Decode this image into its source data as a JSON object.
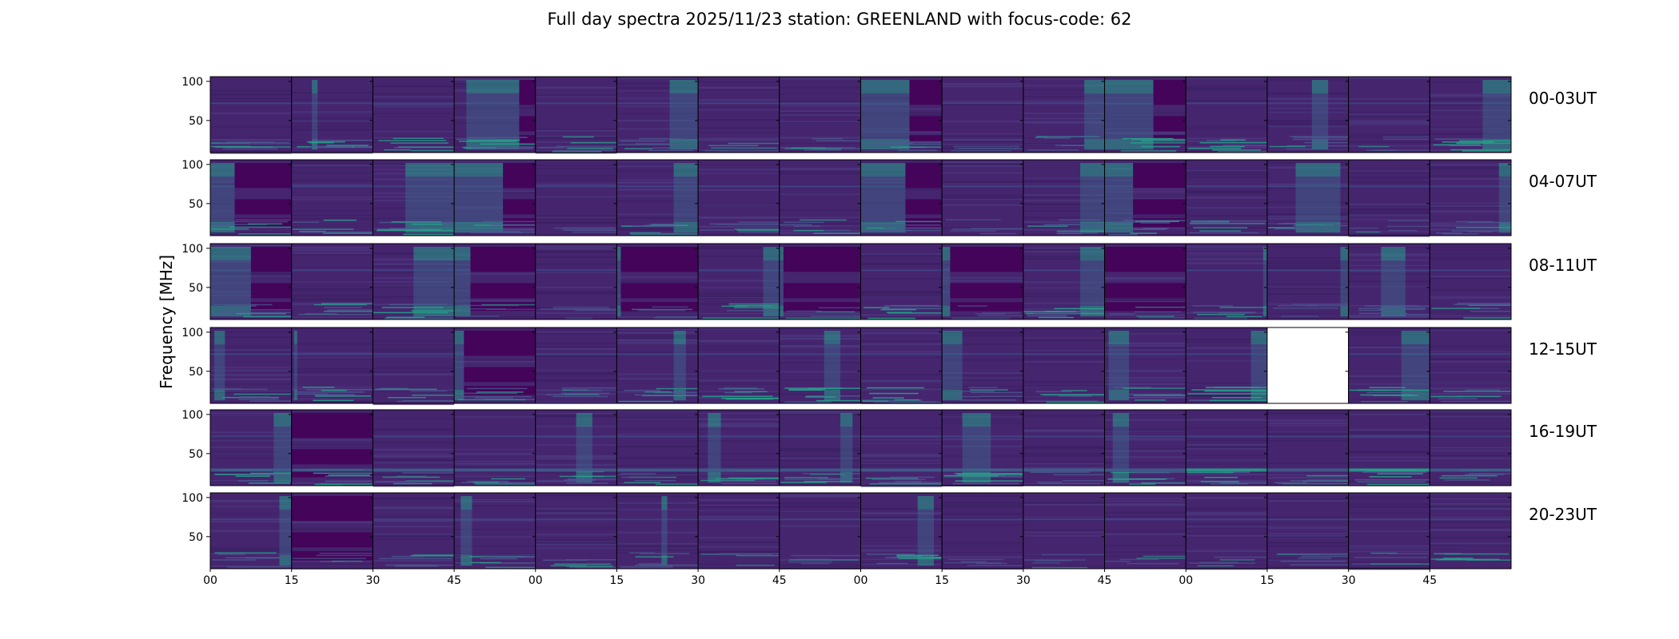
{
  "title": "Full day spectra 2025/11/23 station: GREENLAND with focus-code: 62",
  "chart_data": {
    "type": "heatmap",
    "title": "Full day spectra 2025/11/23 station: GREENLAND with focus-code: 62",
    "xlabel": "",
    "ylabel": "Frequency [MHz]",
    "ylim": [
      9,
      106
    ],
    "yticks": [
      100,
      50
    ],
    "ytick_labels": [
      "100",
      "50"
    ],
    "xtick_labels": [
      "00",
      "15",
      "30",
      "45",
      "00",
      "15",
      "30",
      "45",
      "00",
      "15",
      "30",
      "45",
      "00",
      "15",
      "30",
      "45"
    ],
    "colormap": "viridis",
    "colors": {
      "background": "#46256f",
      "dark_block": "#44045a",
      "band": "#3e4a89",
      "bright": "#26a08a",
      "peak": "#b5de2b",
      "missing": "#ffffff"
    },
    "rows": [
      {
        "label": "00-03UT",
        "panels": [
          {
            "burst": null,
            "dark": null,
            "low": "medium"
          },
          {
            "burst": [
              0.25,
              0.32
            ],
            "dark": null,
            "low": "high"
          },
          {
            "burst": null,
            "dark": null,
            "low": "medium"
          },
          {
            "burst": [
              0.15,
              0.8
            ],
            "dark": [
              0.8,
              1.0
            ],
            "low": "high"
          },
          {
            "burst": null,
            "dark": null,
            "low": "medium"
          },
          {
            "burst": [
              0.65,
              1.0
            ],
            "dark": null,
            "low": "medium"
          },
          {
            "burst": null,
            "dark": null,
            "low": "low"
          },
          {
            "burst": null,
            "dark": null,
            "low": "medium"
          },
          {
            "burst": [
              0.0,
              0.6
            ],
            "dark": [
              0.6,
              1.0
            ],
            "low": "medium"
          },
          {
            "burst": null,
            "dark": null,
            "low": "low"
          },
          {
            "burst": [
              0.75,
              1.0
            ],
            "dark": null,
            "low": "medium"
          },
          {
            "burst": [
              0.0,
              0.6
            ],
            "dark": [
              0.6,
              1.0
            ],
            "low": "high"
          },
          {
            "burst": null,
            "dark": null,
            "low": "high"
          },
          {
            "burst": [
              0.55,
              0.75
            ],
            "dark": null,
            "low": "medium"
          },
          {
            "burst": null,
            "dark": null,
            "low": "low"
          },
          {
            "burst": [
              0.65,
              1.0
            ],
            "dark": null,
            "low": "high"
          }
        ]
      },
      {
        "label": "04-07UT",
        "panels": [
          {
            "burst": [
              0.0,
              0.3
            ],
            "dark": [
              0.3,
              1.0
            ],
            "low": "medium"
          },
          {
            "burst": null,
            "dark": null,
            "low": "medium"
          },
          {
            "burst": [
              0.4,
              1.0
            ],
            "dark": null,
            "low": "high"
          },
          {
            "burst": [
              0.0,
              0.6
            ],
            "dark": [
              0.6,
              1.0
            ],
            "low": "medium"
          },
          {
            "burst": null,
            "dark": null,
            "low": "low"
          },
          {
            "burst": [
              0.7,
              1.0
            ],
            "dark": null,
            "low": "high"
          },
          {
            "burst": null,
            "dark": null,
            "low": "medium"
          },
          {
            "burst": null,
            "dark": null,
            "low": "medium"
          },
          {
            "burst": [
              0.0,
              0.55
            ],
            "dark": [
              0.55,
              1.0
            ],
            "low": "medium"
          },
          {
            "burst": null,
            "dark": null,
            "low": "low"
          },
          {
            "burst": [
              0.7,
              1.0
            ],
            "dark": null,
            "low": "medium"
          },
          {
            "burst": [
              0.0,
              0.35
            ],
            "dark": [
              0.35,
              1.0
            ],
            "low": "high"
          },
          {
            "burst": null,
            "dark": null,
            "low": "medium"
          },
          {
            "burst": [
              0.35,
              0.9
            ],
            "dark": null,
            "low": "high"
          },
          {
            "burst": null,
            "dark": null,
            "low": "low"
          },
          {
            "burst": [
              0.85,
              1.0
            ],
            "dark": null,
            "low": "medium"
          }
        ]
      },
      {
        "label": "08-11UT",
        "panels": [
          {
            "burst": [
              0.0,
              0.5
            ],
            "dark": [
              0.5,
              1.0
            ],
            "low": "medium"
          },
          {
            "burst": null,
            "dark": null,
            "low": "medium"
          },
          {
            "burst": [
              0.5,
              1.0
            ],
            "dark": null,
            "low": "high"
          },
          {
            "burst": [
              0.0,
              0.2
            ],
            "dark": [
              0.2,
              1.0
            ],
            "low": "low"
          },
          {
            "burst": null,
            "dark": null,
            "low": "low"
          },
          {
            "burst": [
              0.0,
              0.05
            ],
            "dark": [
              0.05,
              1.0
            ],
            "low": "low"
          },
          {
            "burst": [
              0.8,
              1.0
            ],
            "dark": null,
            "low": "medium"
          },
          {
            "burst": [
              0.0,
              0.05
            ],
            "dark": [
              0.05,
              1.0
            ],
            "low": "low"
          },
          {
            "burst": null,
            "dark": null,
            "low": "high"
          },
          {
            "burst": [
              0.0,
              0.1
            ],
            "dark": [
              0.1,
              1.0
            ],
            "low": "low"
          },
          {
            "burst": [
              0.7,
              1.0
            ],
            "dark": null,
            "low": "high"
          },
          {
            "burst": null,
            "dark": [
              0.0,
              1.0
            ],
            "low": "low"
          },
          {
            "burst": [
              0.95,
              1.0
            ],
            "dark": null,
            "low": "medium"
          },
          {
            "burst": [
              0.9,
              1.0
            ],
            "dark": null,
            "low": "low"
          },
          {
            "burst": [
              0.4,
              0.7
            ],
            "dark": null,
            "low": "medium"
          },
          {
            "burst": null,
            "dark": null,
            "low": "medium"
          }
        ]
      },
      {
        "label": "12-15UT",
        "panels": [
          {
            "burst": [
              0.05,
              0.18
            ],
            "dark": null,
            "low": "medium"
          },
          {
            "burst": [
              0.03,
              0.07
            ],
            "dark": null,
            "low": "high"
          },
          {
            "burst": null,
            "dark": null,
            "low": "medium"
          },
          {
            "burst": [
              0.0,
              0.12
            ],
            "dark": [
              0.12,
              1.0
            ],
            "low": "medium"
          },
          {
            "burst": null,
            "dark": null,
            "low": "medium"
          },
          {
            "burst": [
              0.7,
              0.85
            ],
            "dark": null,
            "low": "medium"
          },
          {
            "burst": null,
            "dark": null,
            "low": "high"
          },
          {
            "burst": [
              0.55,
              0.75
            ],
            "dark": null,
            "low": "high"
          },
          {
            "burst": null,
            "dark": null,
            "low": "high"
          },
          {
            "burst": [
              0.0,
              0.25
            ],
            "dark": null,
            "low": "medium"
          },
          {
            "burst": null,
            "dark": null,
            "low": "medium"
          },
          {
            "burst": [
              0.05,
              0.3
            ],
            "dark": null,
            "low": "medium"
          },
          {
            "burst": [
              0.8,
              1.0
            ],
            "dark": null,
            "low": "high"
          },
          {
            "missing": true
          },
          {
            "burst": [
              0.65,
              1.0
            ],
            "dark": null,
            "low": "high"
          },
          {
            "burst": null,
            "dark": null,
            "low": "medium"
          }
        ]
      },
      {
        "label": "16-19UT",
        "panels": [
          {
            "burst": [
              0.78,
              1.0
            ],
            "dark": null,
            "low": "high"
          },
          {
            "burst": null,
            "dark": [
              0.0,
              1.0
            ],
            "low": "high"
          },
          {
            "burst": null,
            "dark": null,
            "low": "medium"
          },
          {
            "burst": null,
            "dark": null,
            "low": "medium"
          },
          {
            "burst": [
              0.5,
              0.7
            ],
            "dark": null,
            "low": "medium"
          },
          {
            "burst": null,
            "dark": null,
            "low": "medium"
          },
          {
            "burst": [
              0.12,
              0.28
            ],
            "dark": null,
            "low": "medium"
          },
          {
            "burst": [
              0.75,
              0.9
            ],
            "dark": null,
            "low": "medium"
          },
          {
            "burst": null,
            "dark": null,
            "low": "medium"
          },
          {
            "burst": [
              0.25,
              0.6
            ],
            "dark": null,
            "low": "high"
          },
          {
            "burst": null,
            "dark": null,
            "low": "medium"
          },
          {
            "burst": [
              0.1,
              0.3
            ],
            "dark": null,
            "low": "medium"
          },
          {
            "burst": null,
            "dark": null,
            "low": "high"
          },
          {
            "burst": null,
            "dark": null,
            "low": "medium"
          },
          {
            "burst": null,
            "dark": null,
            "low": "high"
          },
          {
            "burst": null,
            "dark": null,
            "low": "medium"
          }
        ]
      },
      {
        "label": "20-23UT",
        "panels": [
          {
            "burst": [
              0.85,
              1.0
            ],
            "dark": null,
            "low": "medium"
          },
          {
            "burst": null,
            "dark": [
              0.0,
              1.0
            ],
            "low": "low"
          },
          {
            "burst": null,
            "dark": null,
            "low": "medium"
          },
          {
            "burst": [
              0.08,
              0.22
            ],
            "dark": null,
            "low": "medium"
          },
          {
            "burst": null,
            "dark": null,
            "low": "medium"
          },
          {
            "burst": [
              0.55,
              0.62
            ],
            "dark": null,
            "low": "medium"
          },
          {
            "burst": null,
            "dark": null,
            "low": "low"
          },
          {
            "burst": null,
            "dark": null,
            "low": "low"
          },
          {
            "burst": [
              0.7,
              0.9
            ],
            "dark": null,
            "low": "high"
          },
          {
            "burst": null,
            "dark": null,
            "low": "low"
          },
          {
            "burst": null,
            "dark": null,
            "low": "low"
          },
          {
            "burst": null,
            "dark": null,
            "low": "low"
          },
          {
            "burst": null,
            "dark": null,
            "low": "low"
          },
          {
            "burst": null,
            "dark": null,
            "low": "medium"
          },
          {
            "burst": null,
            "dark": null,
            "low": "low"
          },
          {
            "burst": null,
            "dark": null,
            "low": "medium"
          }
        ]
      }
    ]
  }
}
